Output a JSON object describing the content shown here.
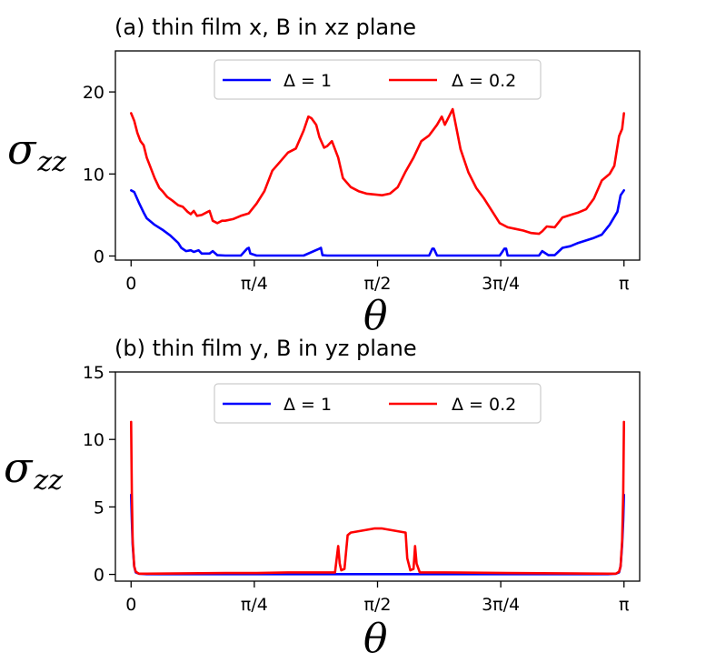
{
  "chart_data": [
    {
      "type": "line",
      "title": "(a) thin film x, B in xz plane",
      "xlabel": "θ",
      "ylabel": "σ",
      "ylabel_sub": "zz",
      "xlim": [
        -0.1,
        3.2416
      ],
      "ylim": [
        -0.5,
        25
      ],
      "x_ticks": [
        {
          "value": 0,
          "label": "0"
        },
        {
          "value": 0.7854,
          "label": "π/4"
        },
        {
          "value": 1.5708,
          "label": "π/2"
        },
        {
          "value": 2.3562,
          "label": "3π/4"
        },
        {
          "value": 3.1416,
          "label": "π"
        }
      ],
      "y_ticks": [
        {
          "value": 0,
          "label": "0"
        },
        {
          "value": 10,
          "label": "10"
        },
        {
          "value": 20,
          "label": "20"
        }
      ],
      "grid": false,
      "legend_position": "top-center",
      "series": [
        {
          "name": "Δ = 1",
          "color": "#0000ff",
          "x": [
            0,
            0.02,
            0.05,
            0.08,
            0.1,
            0.15,
            0.2,
            0.25,
            0.3,
            0.32,
            0.35,
            0.38,
            0.4,
            0.43,
            0.45,
            0.5,
            0.52,
            0.55,
            0.6,
            0.7,
            0.74,
            0.75,
            0.76,
            0.8,
            1.1,
            1.2,
            1.21,
            1.22,
            1.25,
            1.9,
            1.92,
            1.93,
            1.95,
            2.35,
            2.38,
            2.39,
            2.4,
            2.6,
            2.62,
            2.66,
            2.7,
            2.75,
            2.8,
            2.85,
            2.9,
            2.95,
            3.0,
            3.05,
            3.1,
            3.12,
            3.1416
          ],
          "y": [
            8.0,
            7.8,
            6.5,
            5.3,
            4.6,
            3.8,
            3.2,
            2.5,
            1.6,
            1.0,
            0.6,
            0.7,
            0.5,
            0.7,
            0.3,
            0.3,
            0.6,
            0.1,
            0.05,
            0.05,
            0.9,
            1.0,
            0.3,
            0.05,
            0.05,
            0.9,
            1.0,
            0.1,
            0.05,
            0.05,
            0.9,
            0.9,
            0.05,
            0.05,
            0.9,
            0.9,
            0.05,
            0.05,
            0.6,
            0.1,
            0.1,
            1.0,
            1.2,
            1.6,
            1.9,
            2.2,
            2.6,
            3.8,
            5.4,
            7.4,
            8.0
          ]
        },
        {
          "name": "Δ = 0.2",
          "color": "#ff0000",
          "x": [
            0,
            0.02,
            0.04,
            0.06,
            0.08,
            0.1,
            0.12,
            0.15,
            0.18,
            0.2,
            0.23,
            0.26,
            0.3,
            0.33,
            0.36,
            0.38,
            0.4,
            0.42,
            0.45,
            0.48,
            0.5,
            0.52,
            0.55,
            0.58,
            0.6,
            0.65,
            0.7,
            0.75,
            0.8,
            0.85,
            0.9,
            0.95,
            1.0,
            1.05,
            1.1,
            1.13,
            1.15,
            1.18,
            1.2,
            1.23,
            1.25,
            1.28,
            1.32,
            1.35,
            1.4,
            1.45,
            1.5,
            1.55,
            1.6,
            1.65,
            1.7,
            1.75,
            1.8,
            1.85,
            1.9,
            1.95,
            1.98,
            2.0,
            2.05,
            2.1,
            2.15,
            2.2,
            2.25,
            2.3,
            2.35,
            2.4,
            2.45,
            2.5,
            2.55,
            2.6,
            2.62,
            2.65,
            2.7,
            2.75,
            2.8,
            2.85,
            2.9,
            2.95,
            3.0,
            3.05,
            3.08,
            3.11,
            3.13,
            3.1416
          ],
          "y": [
            17.4,
            16.5,
            15.0,
            14.0,
            13.5,
            12.0,
            11.0,
            9.5,
            8.3,
            7.9,
            7.2,
            6.8,
            6.2,
            6.0,
            5.4,
            5.1,
            5.5,
            4.9,
            5.0,
            5.3,
            5.5,
            4.3,
            4.0,
            4.3,
            4.3,
            4.5,
            4.9,
            5.2,
            6.4,
            7.9,
            10.4,
            11.5,
            12.6,
            13.1,
            15.3,
            17.0,
            16.8,
            16.0,
            14.5,
            13.2,
            13.4,
            14.0,
            12.0,
            9.5,
            8.4,
            7.9,
            7.6,
            7.5,
            7.4,
            7.6,
            8.4,
            10.3,
            12.0,
            14.0,
            14.7,
            16.0,
            17.0,
            16.0,
            17.9,
            13.0,
            10.2,
            8.3,
            7.0,
            5.5,
            4.0,
            3.5,
            3.3,
            3.1,
            2.8,
            2.7,
            3.0,
            3.6,
            3.5,
            4.7,
            5.0,
            5.3,
            5.7,
            7.0,
            9.2,
            10.0,
            11.0,
            14.6,
            15.5,
            17.4
          ]
        }
      ]
    },
    {
      "type": "line",
      "title": "(b) thin film y, B in yz plane",
      "xlabel": "θ",
      "ylabel": "σ",
      "ylabel_sub": "zz",
      "xlim": [
        -0.1,
        3.2416
      ],
      "ylim": [
        -0.5,
        15
      ],
      "x_ticks": [
        {
          "value": 0,
          "label": "0"
        },
        {
          "value": 0.7854,
          "label": "π/4"
        },
        {
          "value": 1.5708,
          "label": "π/2"
        },
        {
          "value": 2.3562,
          "label": "3π/4"
        },
        {
          "value": 3.1416,
          "label": "π"
        }
      ],
      "y_ticks": [
        {
          "value": 0,
          "label": "0"
        },
        {
          "value": 5,
          "label": "5"
        },
        {
          "value": 10,
          "label": "10"
        },
        {
          "value": 15,
          "label": "15"
        }
      ],
      "grid": false,
      "legend_position": "top-center",
      "series": [
        {
          "name": "Δ = 1",
          "color": "#0000ff",
          "x": [
            0,
            0.005,
            0.01,
            0.02,
            0.03,
            0.05,
            0.1,
            1.0,
            2.0,
            3.04,
            3.09,
            3.11,
            3.12,
            3.13,
            3.1366,
            3.1416
          ],
          "y": [
            5.9,
            4.0,
            2.2,
            0.6,
            0.15,
            0.05,
            0.02,
            0.02,
            0.02,
            0.02,
            0.05,
            0.15,
            0.6,
            2.2,
            4.0,
            5.9
          ]
        },
        {
          "name": "Δ = 0.2",
          "color": "#ff0000",
          "x": [
            0,
            0.005,
            0.01,
            0.02,
            0.03,
            0.05,
            0.1,
            0.6,
            0.8,
            1.0,
            1.3,
            1.32,
            1.33,
            1.34,
            1.36,
            1.38,
            1.4,
            1.45,
            1.5,
            1.55,
            1.6,
            1.65,
            1.7,
            1.75,
            1.76,
            1.78,
            1.8,
            1.81,
            1.82,
            1.84,
            2.0,
            2.4,
            3.04,
            3.09,
            3.11,
            3.12,
            3.13,
            3.1366,
            3.1416
          ],
          "y": [
            11.3,
            6.0,
            2.5,
            0.6,
            0.2,
            0.05,
            0.05,
            0.1,
            0.1,
            0.15,
            0.15,
            2.1,
            0.8,
            0.3,
            0.4,
            2.9,
            3.1,
            3.2,
            3.3,
            3.4,
            3.4,
            3.3,
            3.2,
            3.1,
            1.2,
            0.3,
            0.4,
            2.1,
            0.8,
            0.15,
            0.15,
            0.1,
            0.05,
            0.05,
            0.2,
            0.6,
            2.5,
            6.0,
            11.3
          ]
        }
      ]
    }
  ]
}
